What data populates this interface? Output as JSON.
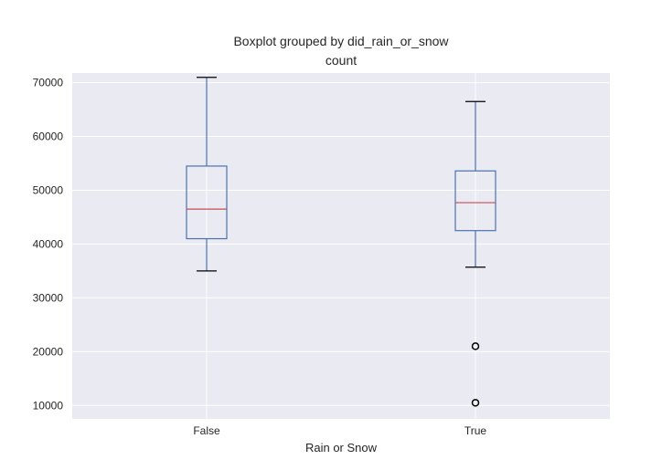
{
  "chart_data": {
    "type": "boxplot",
    "suptitle": "Boxplot grouped by did_rain_or_snow",
    "title": "count",
    "xlabel": "Rain or Snow",
    "ylabel": "",
    "ylim": [
      7500,
      71800
    ],
    "yticks": [
      10000,
      20000,
      30000,
      40000,
      50000,
      60000,
      70000
    ],
    "ytick_labels": [
      "10000",
      "20000",
      "30000",
      "40000",
      "50000",
      "60000",
      "70000"
    ],
    "grid": true,
    "categories": [
      "False",
      "True"
    ],
    "boxes": [
      {
        "category": "False",
        "whisker_low": 35000,
        "q1": 41000,
        "median": 46500,
        "q3": 54500,
        "whisker_high": 71000,
        "outliers": []
      },
      {
        "category": "True",
        "whisker_low": 35700,
        "q1": 42500,
        "median": 47700,
        "q3": 53600,
        "whisker_high": 66500,
        "outliers": [
          21000,
          10500
        ]
      }
    ],
    "colors": {
      "background": "#EAEAF2",
      "grid": "#FFFFFF",
      "box": "#4C72B0",
      "median": "#C44E52",
      "caps": "#000000",
      "text": "#262626"
    }
  }
}
